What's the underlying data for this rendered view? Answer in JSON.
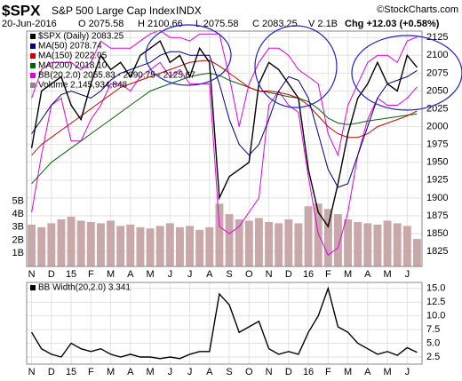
{
  "header": {
    "symbol": "$SPX",
    "name": "S&P 500 Large Cap Index",
    "exchange": "INDX",
    "credit": "©StockCharts.com",
    "date": "20-Jun-2016",
    "open": "O 2075.58",
    "high": "H 2100.66",
    "low": "L 2075.58",
    "close": "C 2083.25",
    "volume": "V 2.1B",
    "change": "Chg +12.03 (+0.58%)"
  },
  "chart_data": [
    {
      "type": "line",
      "categories": [
        "N",
        null,
        "D",
        null,
        "15",
        null,
        "F",
        null,
        "M",
        null,
        "A",
        null,
        "M",
        null,
        "J",
        null,
        "J",
        null,
        "A",
        null,
        "S",
        null,
        "O",
        null,
        "N",
        null,
        "D",
        null,
        "16",
        null,
        "F",
        null,
        "M",
        null,
        "A",
        null,
        "M",
        null,
        "J",
        null
      ],
      "series": [
        {
          "name": "$SPX (Daily) 2083.25",
          "color": "#000000",
          "values": [
            1970,
            2050,
            2060,
            2070,
            2030,
            2010,
            2060,
            2100,
            2080,
            2090,
            2070,
            2100,
            2110,
            2120,
            2090,
            2100,
            2070,
            2110,
            2090,
            1900,
            1930,
            1940,
            1950,
            2060,
            2090,
            2080,
            2060,
            2040,
            1940,
            1880,
            1860,
            1920,
            1990,
            2040,
            2060,
            2090,
            2060,
            2050,
            2100,
            2083.25
          ]
        },
        {
          "name": "MA(50) 2078.74",
          "color": "#000080",
          "values": [
            1990,
            2010,
            2030,
            2045,
            2050,
            2045,
            2040,
            2050,
            2065,
            2075,
            2080,
            2085,
            2090,
            2100,
            2105,
            2105,
            2100,
            2100,
            2100,
            2060,
            2010,
            1975,
            1960,
            1975,
            2010,
            2050,
            2070,
            2065,
            2040,
            1990,
            1940,
            1915,
            1920,
            1960,
            2000,
            2040,
            2060,
            2065,
            2070,
            2078.74
          ]
        },
        {
          "name": "MA(150) 2022.05",
          "color": "#cc0000",
          "values": [
            1960,
            1975,
            1985,
            1995,
            2005,
            2015,
            2025,
            2035,
            2045,
            2055,
            2060,
            2065,
            2070,
            2075,
            2080,
            2085,
            2090,
            2092,
            2093,
            2085,
            2075,
            2065,
            2055,
            2050,
            2050,
            2048,
            2045,
            2040,
            2030,
            2015,
            2000,
            1990,
            1985,
            1985,
            1990,
            2000,
            2005,
            2010,
            2015,
            2022.05
          ]
        },
        {
          "name": "MA(200) 2018.10",
          "color": "#006600",
          "values": [
            1920,
            1935,
            1950,
            1960,
            1970,
            1980,
            1990,
            2000,
            2010,
            2020,
            2030,
            2040,
            2050,
            2055,
            2060,
            2065,
            2070,
            2073,
            2075,
            2072,
            2065,
            2060,
            2055,
            2050,
            2048,
            2045,
            2042,
            2040,
            2035,
            2025,
            2012,
            2005,
            2003,
            2005,
            2008,
            2010,
            2012,
            2014,
            2016,
            2018.1
          ]
        }
      ],
      "bands": {
        "name": "BB(20,2.0) 2055.83 - 2090.75 - 2125.67",
        "color": "#e000e0",
        "upper": [
          2040,
          2080,
          2090,
          2090,
          2090,
          2080,
          2090,
          2120,
          2110,
          2110,
          2110,
          2120,
          2130,
          2135,
          2125,
          2125,
          2120,
          2130,
          2130,
          2130,
          2070,
          2000,
          2060,
          2090,
          2110,
          2110,
          2100,
          2080,
          2070,
          2060,
          1990,
          1960,
          2030,
          2060,
          2090,
          2100,
          2100,
          2090,
          2120,
          2125.67
        ],
        "lower": [
          1880,
          1960,
          2030,
          2040,
          1980,
          1980,
          2010,
          2030,
          2060,
          2060,
          2050,
          2070,
          2080,
          2090,
          2070,
          2080,
          2060,
          2060,
          2060,
          1860,
          1850,
          1860,
          1880,
          1900,
          2030,
          2050,
          2030,
          2020,
          1930,
          1850,
          1820,
          1830,
          1880,
          1960,
          2010,
          2040,
          2030,
          2030,
          2040,
          2055.83
        ]
      },
      "volume": {
        "name": "Volume 2,145,934,848",
        "color": "#c8a8a8",
        "axis": "y2",
        "values": [
          3.2,
          3.0,
          3.3,
          3.6,
          3.8,
          3.5,
          3.4,
          3.3,
          3.5,
          3.1,
          3.2,
          3.0,
          2.9,
          3.1,
          3.3,
          3.0,
          3.1,
          2.8,
          3.0,
          4.8,
          4.0,
          3.6,
          3.5,
          3.7,
          3.4,
          3.3,
          3.6,
          3.3,
          4.6,
          4.8,
          4.4,
          4.0,
          3.6,
          3.4,
          3.3,
          3.2,
          3.5,
          3.3,
          3.1,
          2.1
        ]
      },
      "ylim": [
        1804,
        2134
      ],
      "yticks": [
        1825,
        1850,
        1875,
        1900,
        1925,
        1950,
        1975,
        2000,
        2025,
        2050,
        2075,
        2100,
        2125
      ],
      "y2lim": [
        0,
        18
      ],
      "y2ticks": [
        {
          "value": 1,
          "label": "1B"
        },
        {
          "value": 2,
          "label": "2B"
        },
        {
          "value": 3,
          "label": "3B"
        },
        {
          "value": 4,
          "label": "4B"
        },
        {
          "value": 5,
          "label": "5B"
        }
      ],
      "grid": true
    },
    {
      "type": "line",
      "categories": [
        "N",
        null,
        "D",
        null,
        "15",
        null,
        "F",
        null,
        "M",
        null,
        "A",
        null,
        "M",
        null,
        "J",
        null,
        "J",
        null,
        "A",
        null,
        "S",
        null,
        "O",
        null,
        "N",
        null,
        "D",
        null,
        "16",
        null,
        "F",
        null,
        "M",
        null,
        "A",
        null,
        "M",
        null,
        "J",
        null
      ],
      "series": [
        {
          "name": "BB Width(20,2.0) 3.341",
          "color": "#000000",
          "values": [
            7,
            4,
            3,
            2.5,
            5,
            4,
            3.5,
            4,
            3,
            2.5,
            3,
            2.5,
            2.5,
            2.2,
            2.5,
            2.2,
            3,
            3.5,
            3.5,
            14,
            12,
            7,
            8,
            9,
            4,
            3,
            3.5,
            3,
            7,
            10,
            15,
            8,
            7,
            5,
            4,
            3,
            3.5,
            2.8,
            4.2,
            3.341
          ]
        }
      ],
      "ylim": [
        1.2,
        16.1
      ],
      "yticks": [
        2.5,
        {
          "value": 5,
          "label": "5.0"
        },
        7.5,
        {
          "value": 10,
          "label": "10.0"
        },
        12.5,
        {
          "value": 15,
          "label": "15.0"
        }
      ],
      "grid": true
    }
  ]
}
